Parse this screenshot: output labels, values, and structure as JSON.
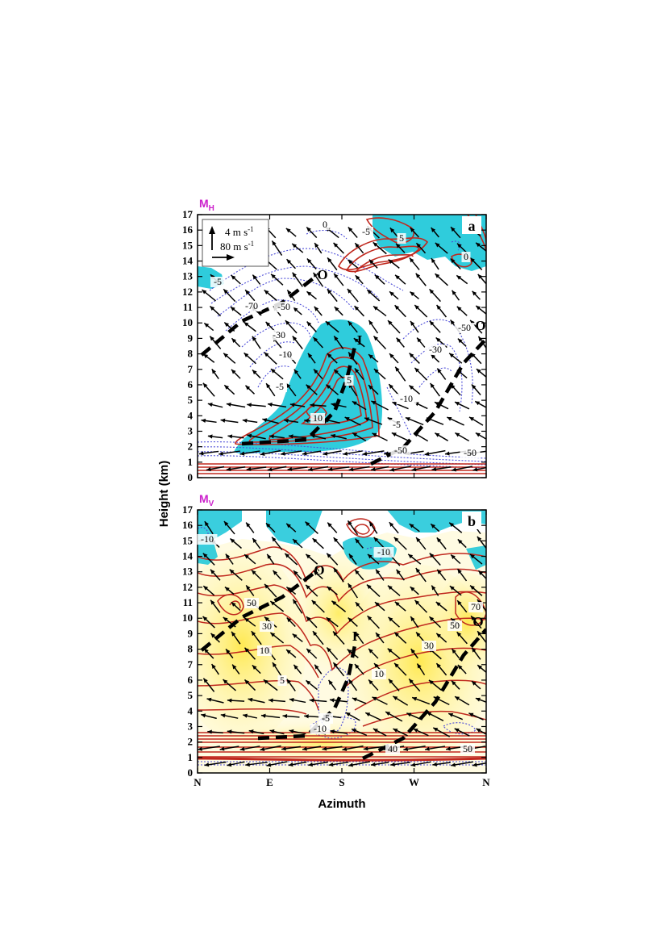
{
  "chart_data": [
    {
      "type": "contour",
      "panel": "a",
      "panel_title": "M",
      "panel_title_sub": "H",
      "x_tick_labels": [
        "N",
        "E",
        "S",
        "W",
        "N"
      ],
      "y_tick_labels": [
        "0",
        "1",
        "2",
        "3",
        "4",
        "5",
        "6",
        "7",
        "8",
        "9",
        "10",
        "11",
        "12",
        "13",
        "14",
        "15",
        "16",
        "17"
      ],
      "ylim": [
        0,
        17
      ],
      "ylabel": "Height (km)",
      "legend": {
        "vertical_ref_label": "4 m s",
        "vertical_ref_exp": "-1",
        "horizontal_ref_label": "80 m s",
        "horizontal_ref_exp": "-1",
        "placement": "top-left"
      },
      "contour_labels": [
        "0",
        "-5",
        "5",
        "0",
        "-5",
        "-70",
        "-50",
        "-30",
        "-10",
        "-50",
        "-30",
        "-5",
        "10",
        "5",
        "-10",
        "-5",
        "-50",
        "-50"
      ],
      "line_markers": [
        "O",
        "O",
        "I"
      ],
      "fill_colors": {
        "negative": "#18c6d8",
        "positive": "#ffee66"
      },
      "line_colors": {
        "positive": "#c0281e",
        "negative": "#4e4ed8",
        "reference": "#000000"
      }
    },
    {
      "type": "contour",
      "panel": "b",
      "panel_title": "M",
      "panel_title_sub": "V",
      "x_tick_labels": [
        "N",
        "E",
        "S",
        "W",
        "N"
      ],
      "y_tick_labels": [
        "0",
        "1",
        "2",
        "3",
        "4",
        "5",
        "6",
        "7",
        "8",
        "9",
        "10",
        "11",
        "12",
        "13",
        "14",
        "15",
        "16",
        "17"
      ],
      "ylim": [
        0,
        17
      ],
      "xlabel": "Azimuth",
      "contour_labels": [
        "-10",
        "-10",
        "50",
        "30",
        "10",
        "5",
        "-5",
        "-10",
        "10",
        "30",
        "50",
        "70",
        "40",
        "50"
      ],
      "line_markers": [
        "O",
        "O",
        "I"
      ],
      "fill_colors": {
        "negative": "#18c6d8",
        "positive": "#ffee66"
      },
      "line_colors": {
        "positive": "#c0281e",
        "negative": "#4e4ed8",
        "reference": "#000000"
      }
    }
  ],
  "ylabel_shared": "Height (km)",
  "xlabel_shared": "Azimuth"
}
